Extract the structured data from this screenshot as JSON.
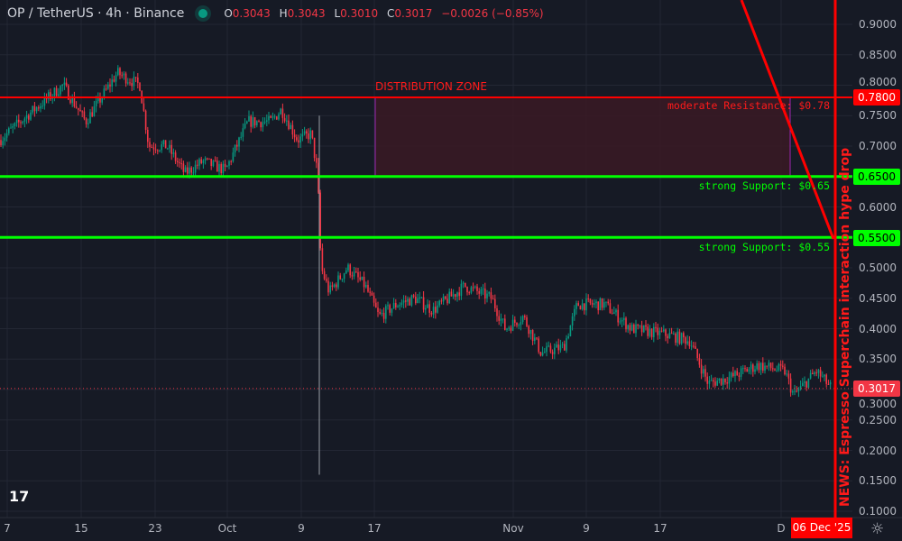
{
  "header": {
    "symbol": "OP / TetherUS · 4h · Binance",
    "open_label": "O",
    "open": "0.3043",
    "high_label": "H",
    "high": "0.3043",
    "low_label": "L",
    "low": "0.3010",
    "close_label": "C",
    "close": "0.3017",
    "change": "−0.0026 (−0.85%)",
    "status_color": "#089981"
  },
  "price_axis": {
    "ticks": [
      "0.9000",
      "0.8500",
      "0.8000",
      "0.7500",
      "0.7000",
      "0.6500",
      "0.6000",
      "0.5500",
      "0.5000",
      "0.4500",
      "0.4000",
      "0.3500",
      "0.3000",
      "0.2500",
      "0.2000",
      "0.1500",
      "0.1000"
    ],
    "tick_values": [
      0.9,
      0.85,
      0.8,
      0.75,
      0.7,
      0.65,
      0.6,
      0.55,
      0.5,
      0.45,
      0.4,
      0.35,
      0.3,
      0.25,
      0.2,
      0.15,
      0.1
    ]
  },
  "time_axis": {
    "ticks": [
      "7",
      "15",
      "23",
      "Oct",
      "9",
      "17",
      "Nov",
      "9",
      "17",
      "D"
    ],
    "cursor_date": "06 Dec '25"
  },
  "levels": {
    "resistance": {
      "price": 0.78,
      "tag": "0.7800",
      "label": "moderate Resistance: $0.78",
      "color": "#ff0000"
    },
    "support1": {
      "price": 0.65,
      "tag": "0.6500",
      "label": "strong Support: $0.65",
      "color": "#00ff00"
    },
    "support2": {
      "price": 0.55,
      "tag": "0.5500",
      "label": "strong Support: $0.55",
      "color": "#00ff00"
    },
    "last": {
      "price": 0.3017,
      "tag": "0.3017",
      "color": "#f23645"
    }
  },
  "zone": {
    "label": "DISTRIBUTION ZONE",
    "top": 0.78,
    "bottom": 0.65
  },
  "news": "NEWS: Espresso Superchain interaction hype drop",
  "colors": {
    "up": "#089981",
    "down": "#f23645",
    "bg": "#161a25"
  },
  "price_path": [
    [
      0,
      0.71
    ],
    [
      30,
      0.75
    ],
    [
      70,
      0.8
    ],
    [
      95,
      0.74
    ],
    [
      130,
      0.82
    ],
    [
      155,
      0.8
    ],
    [
      165,
      0.7
    ],
    [
      185,
      0.7
    ],
    [
      205,
      0.655
    ],
    [
      225,
      0.675
    ],
    [
      250,
      0.66
    ],
    [
      275,
      0.74
    ],
    [
      300,
      0.74
    ],
    [
      312,
      0.76
    ],
    [
      330,
      0.71
    ],
    [
      345,
      0.72
    ],
    [
      352,
      0.655
    ],
    [
      356,
      0.5
    ],
    [
      365,
      0.46
    ],
    [
      385,
      0.5
    ],
    [
      405,
      0.47
    ],
    [
      420,
      0.42
    ],
    [
      440,
      0.44
    ],
    [
      460,
      0.45
    ],
    [
      480,
      0.43
    ],
    [
      515,
      0.47
    ],
    [
      545,
      0.45
    ],
    [
      560,
      0.4
    ],
    [
      580,
      0.42
    ],
    [
      600,
      0.36
    ],
    [
      625,
      0.37
    ],
    [
      640,
      0.44
    ],
    [
      670,
      0.44
    ],
    [
      700,
      0.4
    ],
    [
      740,
      0.39
    ],
    [
      765,
      0.38
    ],
    [
      785,
      0.31
    ],
    [
      810,
      0.32
    ],
    [
      840,
      0.34
    ],
    [
      870,
      0.33
    ],
    [
      880,
      0.29
    ],
    [
      905,
      0.33
    ],
    [
      922,
      0.3017
    ]
  ],
  "spike_low": 0.16
}
